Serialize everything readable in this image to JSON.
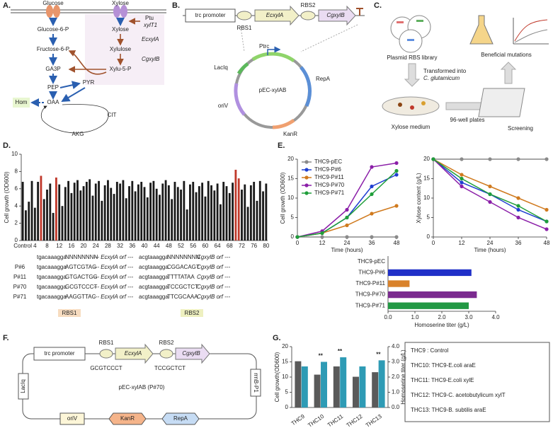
{
  "panel_a": {
    "label": "A.",
    "glucose": "Glucose",
    "xylose_out": "Xylose",
    "g6p": "Glucose-6-P",
    "f6p": "Fructose-6-P",
    "ga3p": "GA3P",
    "pep": "PEP",
    "pyr": "PYR",
    "oaa": "OAA",
    "cit": "CIT",
    "akg": "AKG",
    "hom": "Hom",
    "xylose_in": "Xylose",
    "xylulose": "Xylulose",
    "xu5p": "Xylu-5-P",
    "gene_a": "EcxylA",
    "gene_b": "CgxylB",
    "promoter": "Ptu",
    "transporter": "xylT1"
  },
  "panel_b": {
    "label": "B.",
    "promoter": "trc promoter",
    "rbs1": "RBS1",
    "gene_a": "EcxylA",
    "rbs2": "RBS2",
    "gene_b": "CgxylB",
    "ptrc": "Ptrc",
    "plasmid": "pEC-xylAB",
    "laciq": "LacIq",
    "repa": "RepA",
    "oriv": "oriV",
    "kan": "KanR"
  },
  "panel_c": {
    "label": "C.",
    "library": "Plasmid RBS library",
    "beneficial": "Beneficial mutations",
    "transformed": "Transformed into",
    "host": "C. glutamicum",
    "medium": "Xylose medium",
    "plates": "96-well plates",
    "screening": "Screening"
  },
  "panel_d": {
    "label": "D.",
    "rbs1": "RBS1",
    "rbs2": "RBS2",
    "sequences": [
      {
        "p1": "tgacaaagga",
        "r1": "NNNNNNNN",
        "o1": "--- EcxylA orf ---",
        "p2": "acgtaaagga",
        "r2": "NNNNNNNN",
        "o2": "CgxylB orf ---"
      },
      {
        "label": "P#6",
        "p1": "tgacaaagga",
        "r1": "AGTCGTAG",
        "o1": "--- EcxylA orf ---",
        "p2": "acgtaaagga",
        "r2": "CGGACAGT",
        "o2": "CgxylB orf ---"
      },
      {
        "label": "P#11",
        "p1": "tgacaaagga",
        "r1": "GTGACTGG",
        "o1": "--- EcxylA orf ---",
        "p2": "acgtaaagga",
        "r2": "TTTTATAA",
        "o2": "CgxylB orf ---"
      },
      {
        "label": "P#70",
        "p1": "tgacaaagga",
        "r1": "GCGTCCCT",
        "o1": "--- EcxylA orf ---",
        "p2": "acgtaaagga",
        "r2": "TCCGCTCT",
        "o2": "CgxylB orf ---"
      },
      {
        "label": "P#71",
        "p1": "tgacaaagga",
        "r1": "AAGGTTAC",
        "o1": "--- EcxylA orf ---",
        "p2": "acgtaaagga",
        "r2": "TTCGCAAA",
        "o2": "CgxylB orf ---"
      }
    ]
  },
  "panel_e": {
    "label": "E."
  },
  "panel_f": {
    "label": "F.",
    "promoter": "trc promoter",
    "rbs1": "RBS1",
    "gene_a": "EcxylA",
    "rbs2": "RBS2",
    "gene_b": "CgxylB",
    "seq1": "GCGTCCCT",
    "seq2": "TCCGCTCT",
    "plasmid": "pEC-xylAB (P#70)",
    "rrnb": "rrnB-P1",
    "laciq": "LacIq",
    "oriv": "oriV",
    "kan": "KanR",
    "repa": "RepA"
  },
  "panel_g": {
    "label": "G.",
    "legend": [
      "THC9  : Control",
      "THC10: THC9-E.coli araE",
      "THC11: THC9-E.coli xylE",
      "THC12: THC9-C. acetobutylicum xylT",
      "THC13: THC9-B. subtilis araE"
    ]
  },
  "chart_data": [
    {
      "type": "bar",
      "ylabel": "Cell growth (OD600)",
      "categories": [
        "Control",
        null,
        null,
        null,
        "4",
        null,
        null,
        null,
        "8",
        null,
        null,
        null,
        "12",
        null,
        null,
        null,
        "16",
        null,
        null,
        null,
        "20",
        null,
        null,
        null,
        "24",
        null,
        null,
        null,
        "28",
        null,
        null,
        null,
        "32",
        null,
        null,
        null,
        "36",
        null,
        null,
        null,
        "40",
        null,
        null,
        null,
        "44",
        null,
        null,
        null,
        "48",
        null,
        null,
        null,
        "52",
        null,
        null,
        null,
        "56",
        null,
        null,
        null,
        "60",
        null,
        null,
        null,
        "64",
        null,
        null,
        null,
        "68",
        null,
        null,
        null,
        "72",
        null,
        null,
        null,
        "76",
        null,
        null,
        null,
        "80"
      ],
      "values": [
        6.8,
        3.5,
        4.5,
        6.9,
        3.8,
        6.8,
        7.5,
        4.8,
        5.9,
        6.6,
        3.2,
        7.3,
        6.5,
        4.0,
        6.2,
        6.9,
        5.5,
        6.7,
        7.0,
        5.8,
        6.3,
        6.8,
        7.1,
        5.2,
        6.6,
        6.9,
        4.6,
        6.4,
        7.0,
        6.1,
        5.4,
        6.8,
        6.6,
        7.0,
        4.9,
        6.3,
        6.9,
        5.7,
        6.5,
        6.8,
        6.2,
        5.0,
        6.7,
        6.9,
        6.0,
        5.3,
        6.6,
        7.0,
        6.4,
        4.8,
        6.8,
        6.2,
        5.9,
        6.9,
        3.6,
        6.5,
        6.8,
        5.6,
        6.3,
        6.7,
        5.1,
        6.9,
        6.4,
        5.8,
        6.6,
        4.2,
        6.8,
        6.3,
        5.5,
        6.7,
        8.2,
        7.2,
        5.9,
        6.5,
        3.9,
        6.4,
        6.8,
        4.6,
        6.9,
        5.7,
        6.6
      ],
      "colors": [
        "#1a1a1a",
        "#1a1a1a",
        "#1a1a1a",
        "#1a1a1a",
        "#1a1a1a",
        "#1a1a1a",
        "#c0392b",
        "#1a1a1a",
        "#1a1a1a",
        "#1a1a1a",
        "#1a1a1a",
        "#c0392b",
        "#1a1a1a",
        "#1a1a1a",
        "#1a1a1a",
        "#1a1a1a",
        "#1a1a1a",
        "#1a1a1a",
        "#1a1a1a",
        "#1a1a1a",
        "#1a1a1a",
        "#1a1a1a",
        "#1a1a1a",
        "#1a1a1a",
        "#1a1a1a",
        "#1a1a1a",
        "#1a1a1a",
        "#1a1a1a",
        "#1a1a1a",
        "#1a1a1a",
        "#1a1a1a",
        "#1a1a1a",
        "#1a1a1a",
        "#1a1a1a",
        "#1a1a1a",
        "#1a1a1a",
        "#1a1a1a",
        "#1a1a1a",
        "#1a1a1a",
        "#1a1a1a",
        "#1a1a1a",
        "#1a1a1a",
        "#1a1a1a",
        "#1a1a1a",
        "#1a1a1a",
        "#1a1a1a",
        "#1a1a1a",
        "#1a1a1a",
        "#1a1a1a",
        "#1a1a1a",
        "#1a1a1a",
        "#1a1a1a",
        "#1a1a1a",
        "#1a1a1a",
        "#1a1a1a",
        "#1a1a1a",
        "#1a1a1a",
        "#1a1a1a",
        "#1a1a1a",
        "#1a1a1a",
        "#1a1a1a",
        "#1a1a1a",
        "#1a1a1a",
        "#1a1a1a",
        "#1a1a1a",
        "#1a1a1a",
        "#1a1a1a",
        "#1a1a1a",
        "#1a1a1a",
        "#1a1a1a",
        "#c0392b",
        "#c0392b",
        "#1a1a1a",
        "#1a1a1a",
        "#1a1a1a",
        "#1a1a1a",
        "#1a1a1a",
        "#1a1a1a",
        "#1a1a1a",
        "#1a1a1a",
        "#1a1a1a"
      ],
      "ylim": [
        0,
        10
      ],
      "yticks": [
        0,
        2,
        4,
        6,
        8,
        10
      ]
    },
    {
      "type": "line",
      "xlabel": "Time (hours)",
      "ylabel": "Cell growth (OD600)",
      "x": [
        0,
        12,
        24,
        36,
        48
      ],
      "xlim": [
        0,
        48
      ],
      "xticks": [
        0,
        12,
        24,
        36,
        48
      ],
      "ylim": [
        0,
        20
      ],
      "yticks": [
        0,
        5,
        10,
        15,
        20
      ],
      "series": [
        {
          "name": "THC9-pEC",
          "color": "#8a8a8a",
          "values": [
            0,
            0,
            0,
            0,
            0
          ]
        },
        {
          "name": "THC9-P#6",
          "color": "#1f3fd1",
          "values": [
            0,
            1,
            5,
            13,
            16
          ]
        },
        {
          "name": "THC9-P#11",
          "color": "#d07a1e",
          "values": [
            0,
            1,
            3,
            6,
            8
          ]
        },
        {
          "name": "THC9-P#70",
          "color": "#8b1fa8",
          "values": [
            0,
            1.5,
            7,
            18,
            19
          ]
        },
        {
          "name": "THC9-P#71",
          "color": "#1f9e3a",
          "values": [
            0,
            1,
            5,
            11,
            17
          ]
        }
      ]
    },
    {
      "type": "line",
      "xlabel": "Time (hours)",
      "ylabel": "Xylose content (g/L)",
      "x": [
        0,
        12,
        24,
        36,
        48
      ],
      "xlim": [
        0,
        48
      ],
      "xticks": [
        0,
        12,
        24,
        36,
        48
      ],
      "ylim": [
        0,
        20
      ],
      "yticks": [
        0,
        5,
        10,
        15,
        20
      ],
      "series": [
        {
          "color": "#8a8a8a",
          "values": [
            20,
            20,
            20,
            20,
            20
          ]
        },
        {
          "color": "#1f3fd1",
          "values": [
            20,
            14,
            11,
            7,
            4
          ]
        },
        {
          "color": "#d07a1e",
          "values": [
            20,
            16,
            13,
            10,
            7
          ]
        },
        {
          "color": "#8b1fa8",
          "values": [
            20,
            13,
            9,
            5,
            2
          ]
        },
        {
          "color": "#1f9e3a",
          "values": [
            20,
            15,
            11,
            8,
            4
          ]
        }
      ]
    },
    {
      "type": "hbar",
      "xlabel": "Homoserine titer (g/L)",
      "categories": [
        "THC9-pEC",
        "THC9-P#6",
        "THC9-P#11",
        "THC9-P#70",
        "THC9-P#71"
      ],
      "values": [
        0,
        3.1,
        0.8,
        3.3,
        3.0
      ],
      "colors": [
        "#8a8a8a",
        "#2030c8",
        "#d9822b",
        "#7b2a8f",
        "#229944"
      ],
      "xlim": [
        0,
        4
      ],
      "xticks": [
        {
          "value": 0,
          "label": "0.0"
        },
        {
          "value": 1,
          "label": "1.0"
        },
        {
          "value": 2,
          "label": "2.0"
        },
        {
          "value": 3,
          "label": "3.0"
        },
        {
          "value": 4,
          "label": "4.0"
        }
      ]
    },
    {
      "type": "bar",
      "ylabel": "Cell growth(OD600)",
      "y2label": "Homoserine titer (g/L)",
      "categories": [
        "THC9",
        "THC10",
        "THC11",
        "THC12",
        "THC13"
      ],
      "series": [
        {
          "color": "#5a5a5a",
          "values": [
            15.2,
            10.8,
            13.5,
            10.1,
            11.6
          ]
        },
        {
          "color": "#2e9bb5",
          "axis": "y2",
          "values": [
            2.7,
            3.0,
            3.3,
            2.7,
            3.1
          ]
        }
      ],
      "annotations": [
        null,
        "**",
        "**",
        null,
        "**"
      ],
      "ylim": [
        0,
        20
      ],
      "yticks": [
        0,
        5,
        10,
        15,
        20
      ],
      "y2lim": [
        0,
        4
      ],
      "y2ticks": [
        {
          "value": 0,
          "label": "0.0"
        },
        {
          "value": 1,
          "label": "1.0"
        },
        {
          "value": 2,
          "label": "2.0"
        },
        {
          "value": 3,
          "label": "3.0"
        },
        {
          "value": 4,
          "label": "4.0"
        }
      ]
    }
  ]
}
